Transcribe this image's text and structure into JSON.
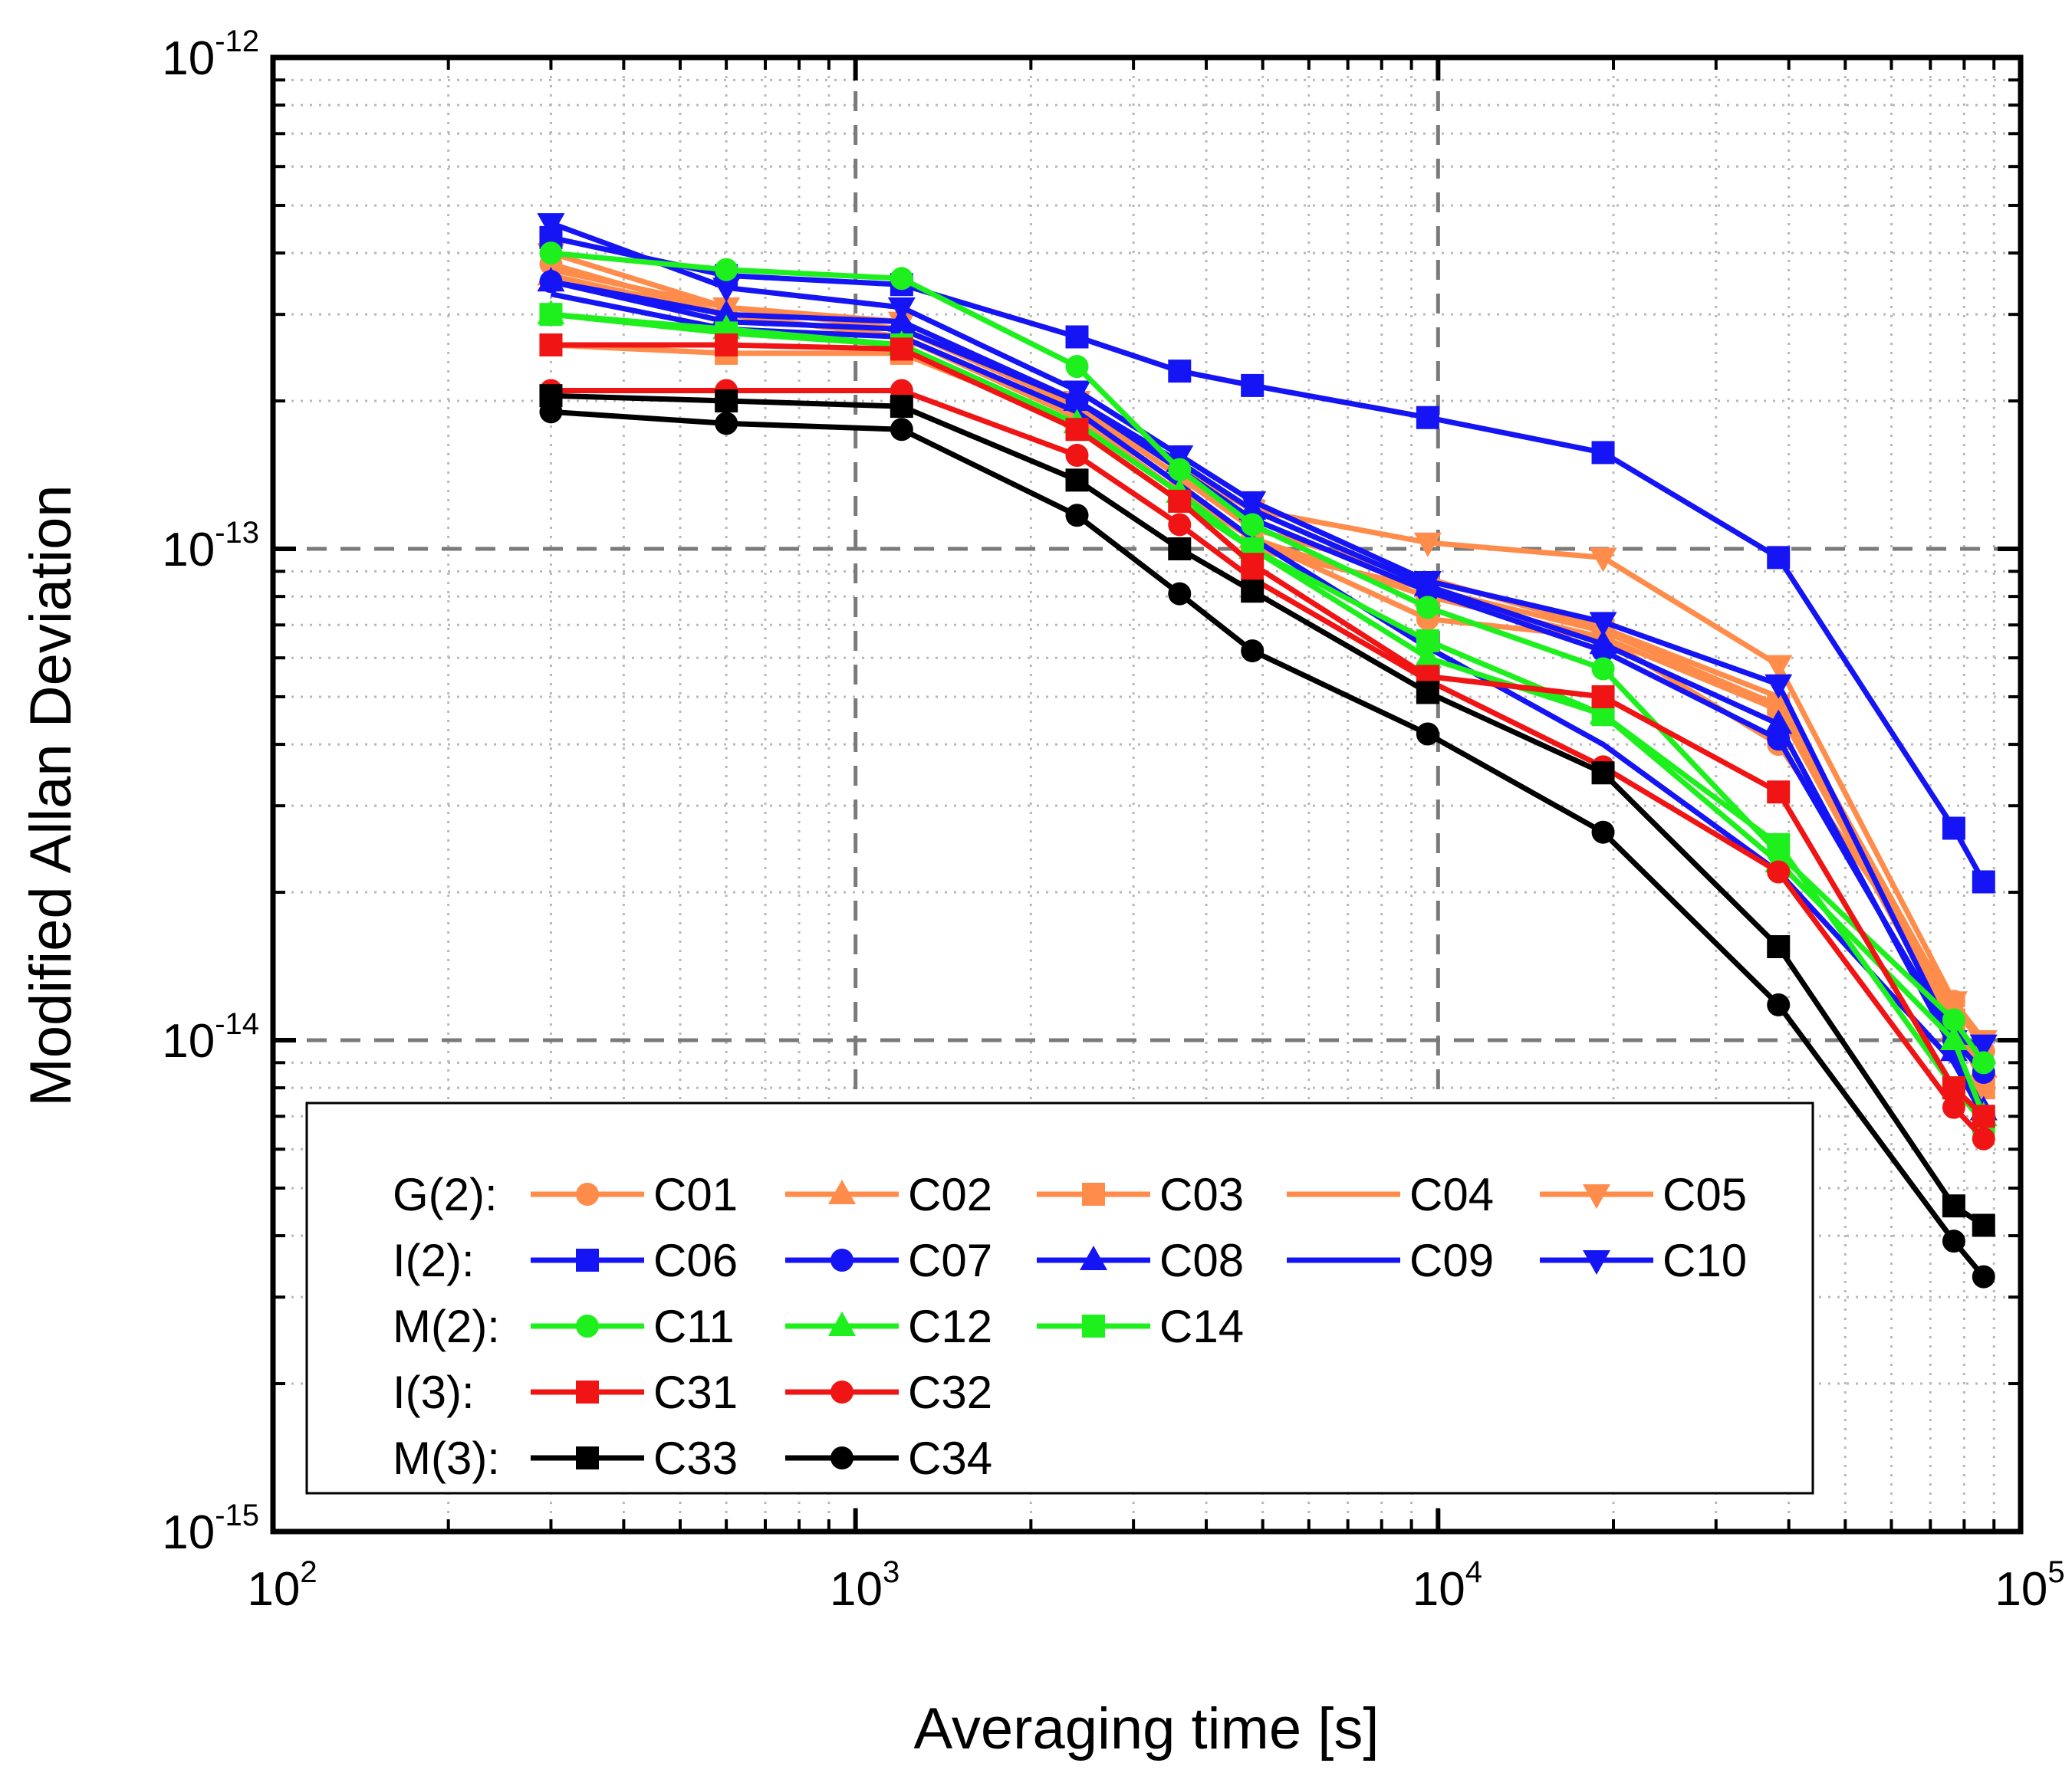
{
  "chart_data": {
    "type": "line",
    "xscale": "log",
    "yscale": "log",
    "xlabel": "Averaging time [s]",
    "ylabel": "Modified Allan Deviation",
    "xlim": [
      100,
      100000
    ],
    "ylim": [
      1e-15,
      1e-12
    ],
    "x_ticks": [
      {
        "value": 100,
        "base": "10",
        "exp": "2"
      },
      {
        "value": 1000,
        "base": "10",
        "exp": "3"
      },
      {
        "value": 10000,
        "base": "10",
        "exp": "4"
      },
      {
        "value": 100000,
        "base": "10",
        "exp": "5"
      }
    ],
    "y_ticks": [
      {
        "value": 1e-12,
        "base": "10",
        "exp": "-12"
      },
      {
        "value": 1e-13,
        "base": "10",
        "exp": "-13"
      },
      {
        "value": 1e-14,
        "base": "10",
        "exp": "-14"
      },
      {
        "value": 1e-15,
        "base": "10",
        "exp": "-15"
      }
    ],
    "major_grid": "dashed",
    "minor_grid": "dotted",
    "legend_position": "lower-left inside",
    "groups": [
      {
        "label": "G(2):",
        "series": [
          "C01",
          "C02",
          "C03",
          "C04",
          "C05"
        ]
      },
      {
        "label": "I(2):",
        "series": [
          "C06",
          "C07",
          "C08",
          "C09",
          "C10"
        ]
      },
      {
        "label": "M(2):",
        "series": [
          "C11",
          "C12",
          "C14"
        ]
      },
      {
        "label": "I(3):",
        "series": [
          "C31",
          "C32"
        ]
      },
      {
        "label": "M(3):",
        "series": [
          "C33",
          "C34"
        ]
      }
    ],
    "series": [
      {
        "name": "C01",
        "color": "#FF8C4A",
        "marker": "circle",
        "x": [
          300,
          600,
          1200,
          2400,
          3600,
          4800,
          9600,
          19200,
          38400,
          76800,
          86400
        ],
        "y": [
          3.8e-13,
          3e-13,
          2.7e-13,
          1.9e-13,
          1.35e-13,
          1.05e-13,
          7.2e-14,
          6.6e-14,
          4e-14,
          1.2e-14,
          9.5e-15
        ]
      },
      {
        "name": "C02",
        "color": "#FF8C4A",
        "marker": "triangle-up",
        "x": [
          300,
          600,
          1200,
          2400,
          3600,
          4800,
          9600,
          19200,
          38400,
          76800,
          86400
        ],
        "y": [
          3.6e-13,
          3e-13,
          2.7e-13,
          1.85e-13,
          1.3e-13,
          1.05e-13,
          8e-14,
          6.6e-14,
          4.7e-14,
          1.05e-14,
          8.8e-15
        ]
      },
      {
        "name": "C03",
        "color": "#FF8C4A",
        "marker": "square",
        "x": [
          300,
          600,
          1200,
          2400,
          3600,
          4800,
          9600,
          19200,
          38400,
          76800,
          86400
        ],
        "y": [
          2.6e-13,
          2.5e-13,
          2.5e-13,
          1.8e-13,
          1.3e-13,
          1e-13,
          8.3e-14,
          6.8e-14,
          4.8e-14,
          1.1e-14,
          8e-15
        ]
      },
      {
        "name": "C04",
        "color": "#FF8C4A",
        "marker": "none",
        "x": [
          300,
          600,
          1200,
          2400,
          3600,
          4800,
          9600,
          19200,
          38400,
          76800,
          86400
        ],
        "y": [
          3.7e-13,
          3.1e-13,
          2.8e-13,
          1.95e-13,
          1.4e-13,
          1.1e-13,
          8.7e-14,
          6.9e-14,
          5e-14,
          1.15e-14,
          1e-14
        ]
      },
      {
        "name": "C05",
        "color": "#FF8C4A",
        "marker": "triangle-down",
        "x": [
          300,
          600,
          1200,
          2400,
          3600,
          4800,
          9600,
          19200,
          38400,
          76800,
          86400
        ],
        "y": [
          4e-13,
          3.1e-13,
          2.9e-13,
          2e-13,
          1.45e-13,
          1.2e-13,
          1.03e-13,
          9.6e-14,
          5.8e-14,
          1.2e-14,
          1e-14
        ]
      },
      {
        "name": "C06",
        "color": "#1414F5",
        "marker": "square",
        "x": [
          300,
          600,
          1200,
          2400,
          3600,
          4800,
          9600,
          19200,
          38400,
          76800,
          86400
        ],
        "y": [
          4.3e-13,
          3.6e-13,
          3.45e-13,
          2.7e-13,
          2.3e-13,
          2.15e-13,
          1.85e-13,
          1.57e-13,
          9.6e-14,
          2.7e-14,
          2.1e-14
        ]
      },
      {
        "name": "C07",
        "color": "#1414F5",
        "marker": "circle",
        "x": [
          300,
          600,
          1200,
          2400,
          3600,
          4800,
          9600,
          19200,
          38400,
          76800,
          86400
        ],
        "y": [
          3.5e-13,
          2.9e-13,
          2.8e-13,
          2e-13,
          1.45e-13,
          1.15e-13,
          8.2e-14,
          6.2e-14,
          4.1e-14,
          1e-14,
          8.6e-15
        ]
      },
      {
        "name": "C08",
        "color": "#1414F5",
        "marker": "triangle-up",
        "x": [
          300,
          600,
          1200,
          2400,
          3600,
          4800,
          9600,
          19200,
          38400,
          76800,
          86400
        ],
        "y": [
          3.5e-13,
          3e-13,
          2.9e-13,
          2e-13,
          1.5e-13,
          1.2e-13,
          8.4e-14,
          6.4e-14,
          4.4e-14,
          9.5e-15,
          7.2e-15
        ]
      },
      {
        "name": "C09",
        "color": "#1414F5",
        "marker": "none",
        "x": [
          300,
          600,
          1200,
          2400,
          3600,
          4800,
          9600,
          19200,
          38400,
          76800,
          86400
        ],
        "y": [
          3.3e-13,
          2.8e-13,
          2.7e-13,
          1.9e-13,
          1.35e-13,
          1.05e-13,
          6.3e-14,
          4e-14,
          2.2e-14,
          9e-15,
          7e-15
        ]
      },
      {
        "name": "C10",
        "color": "#1414F5",
        "marker": "triangle-down",
        "x": [
          300,
          600,
          1200,
          2400,
          3600,
          4800,
          9600,
          19200,
          38400,
          76800,
          86400
        ],
        "y": [
          4.6e-13,
          3.4e-13,
          3.1e-13,
          2.1e-13,
          1.55e-13,
          1.25e-13,
          8.6e-14,
          7.1e-14,
          5.3e-14,
          1e-14,
          9.8e-15
        ]
      },
      {
        "name": "C11",
        "color": "#1EF01E",
        "marker": "circle",
        "x": [
          300,
          600,
          1200,
          2400,
          3600,
          4800,
          9600,
          19200,
          38400,
          76800,
          86400
        ],
        "y": [
          4e-13,
          3.7e-13,
          3.55e-13,
          2.35e-13,
          1.45e-13,
          1.12e-13,
          7.6e-14,
          5.7e-14,
          2.4e-14,
          1.1e-14,
          9e-15
        ]
      },
      {
        "name": "C12",
        "color": "#1EF01E",
        "marker": "triangle-up",
        "x": [
          300,
          600,
          1200,
          2400,
          3600,
          4800,
          9600,
          19200,
          38400,
          76800,
          86400
        ],
        "y": [
          3e-13,
          2.8e-13,
          2.6e-13,
          1.8e-13,
          1.3e-13,
          1e-13,
          6e-14,
          4.6e-14,
          2.3e-14,
          1e-14,
          7e-15
        ]
      },
      {
        "name": "C14",
        "color": "#1EF01E",
        "marker": "square",
        "x": [
          300,
          600,
          1200,
          2400,
          3600,
          4800,
          9600,
          19200,
          38400,
          76800,
          86400
        ],
        "y": [
          3e-13,
          2.75e-13,
          2.6e-13,
          1.75e-13,
          1.25e-13,
          1e-13,
          6.5e-14,
          4.6e-14,
          2.5e-14,
          8e-15,
          6.8e-15
        ]
      },
      {
        "name": "C31",
        "color": "#F01414",
        "marker": "square",
        "x": [
          300,
          600,
          1200,
          2400,
          3600,
          4800,
          9600,
          19200,
          38400,
          76800,
          86400
        ],
        "y": [
          2.6e-13,
          2.6e-13,
          2.55e-13,
          1.75e-13,
          1.25e-13,
          9.3e-14,
          5.5e-14,
          5e-14,
          3.2e-14,
          8e-15,
          7e-15
        ]
      },
      {
        "name": "C32",
        "color": "#F01414",
        "marker": "circle",
        "x": [
          300,
          600,
          1200,
          2400,
          3600,
          4800,
          9600,
          19200,
          38400,
          76800,
          86400
        ],
        "y": [
          2.1e-13,
          2.1e-13,
          2.1e-13,
          1.55e-13,
          1.12e-13,
          8.7e-14,
          5.4e-14,
          3.6e-14,
          2.2e-14,
          7.3e-15,
          6.3e-15
        ]
      },
      {
        "name": "C33",
        "color": "#000000",
        "marker": "square",
        "x": [
          300,
          600,
          1200,
          2400,
          3600,
          4800,
          9600,
          19200,
          38400,
          76800,
          86400
        ],
        "y": [
          2.05e-13,
          2e-13,
          1.95e-13,
          1.38e-13,
          1e-13,
          8.2e-14,
          5.1e-14,
          3.5e-14,
          1.55e-14,
          4.6e-15,
          4.2e-15
        ]
      },
      {
        "name": "C34",
        "color": "#000000",
        "marker": "circle",
        "x": [
          300,
          600,
          1200,
          2400,
          3600,
          4800,
          9600,
          19200,
          38400,
          76800,
          86400
        ],
        "y": [
          1.9e-13,
          1.8e-13,
          1.75e-13,
          1.17e-13,
          8.1e-14,
          6.2e-14,
          4.2e-14,
          2.65e-14,
          1.18e-14,
          3.9e-15,
          3.3e-15
        ]
      }
    ]
  }
}
